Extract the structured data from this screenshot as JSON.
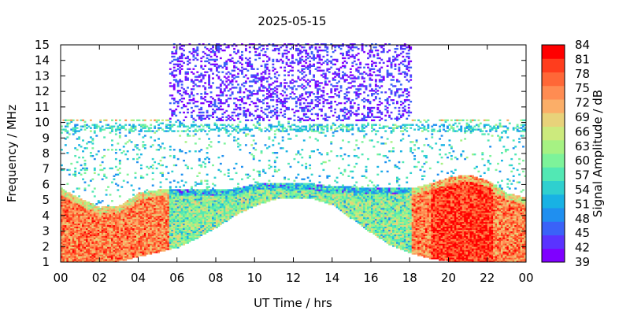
{
  "chart_data": {
    "type": "heatmap",
    "title": "2025-05-15",
    "xlabel": "UT Time / hrs",
    "ylabel": "Frequency / MHz",
    "colorbar_label": "Signal Amplitude / dB",
    "xlim": [
      0,
      24
    ],
    "ylim": [
      1,
      15
    ],
    "x_ticks": [
      "00",
      "02",
      "04",
      "06",
      "08",
      "10",
      "12",
      "14",
      "16",
      "18",
      "20",
      "22",
      "00"
    ],
    "y_ticks": [
      "1",
      "2",
      "3",
      "4",
      "5",
      "6",
      "7",
      "8",
      "9",
      "10",
      "11",
      "12",
      "13",
      "14",
      "15"
    ],
    "colorbar_ticks": [
      "84",
      "81",
      "78",
      "75",
      "72",
      "69",
      "66",
      "63",
      "60",
      "57",
      "54",
      "51",
      "48",
      "45",
      "42",
      "39"
    ],
    "colorbar_range": [
      39,
      84
    ],
    "colormap": [
      "#7f00ff",
      "#5a33ff",
      "#3a62f8",
      "#1f8ff0",
      "#18b2e4",
      "#2fd0cf",
      "#52e8b4",
      "#7df39a",
      "#a6f283",
      "#ccea7d",
      "#e8d27a",
      "#fbae68",
      "#ff8c52",
      "#ff6737",
      "#ff3d1d",
      "#ff0000"
    ],
    "daytime_top_band_hours": [
      5.5,
      18
    ],
    "daytime_top_band_mhz": [
      10,
      15
    ],
    "upper_envelope_mhz": {
      "hours": [
        0,
        1,
        2,
        3,
        4,
        5,
        6,
        7,
        8,
        9,
        10,
        11,
        12,
        13,
        14,
        15,
        16,
        17,
        18,
        19,
        20,
        21,
        22,
        23,
        24
      ],
      "values": [
        5.7,
        5.0,
        4.5,
        4.6,
        5.4,
        5.6,
        5.6,
        5.6,
        5.6,
        5.7,
        6.0,
        6.0,
        6.0,
        6.0,
        5.8,
        5.8,
        5.7,
        5.7,
        5.7,
        6.0,
        6.4,
        6.6,
        6.2,
        5.4,
        5.1
      ]
    },
    "lower_cutoff_mhz": {
      "hours": [
        0,
        1,
        2,
        3,
        4,
        5,
        6,
        7,
        8,
        9,
        10,
        11,
        12,
        13,
        14,
        15,
        16,
        17,
        18,
        19,
        20,
        21,
        22,
        23,
        24
      ],
      "values": [
        1.0,
        1.0,
        1.0,
        1.0,
        1.3,
        1.6,
        1.9,
        2.5,
        3.2,
        4.0,
        4.6,
        5.0,
        5.0,
        5.0,
        4.6,
        3.7,
        2.8,
        2.0,
        1.5,
        1.2,
        1.0,
        1.0,
        1.0,
        1.0,
        1.0
      ]
    }
  }
}
